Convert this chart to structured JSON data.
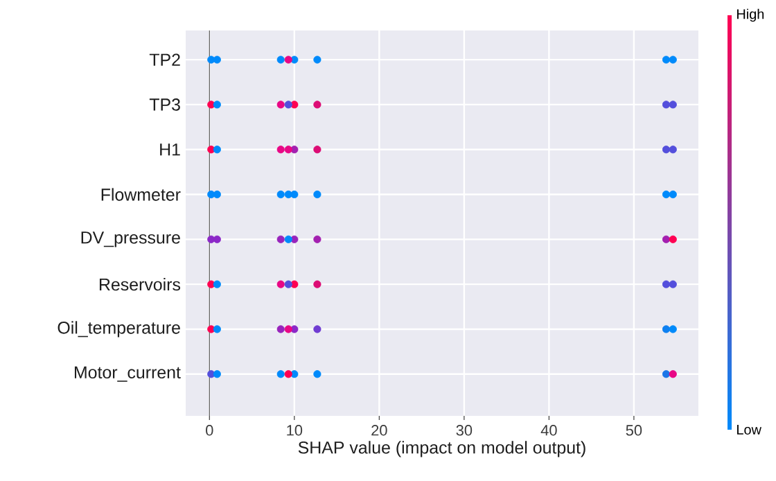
{
  "chart_data": {
    "type": "scatter",
    "orientation": "horizontal",
    "xlabel": "SHAP value (impact on model output)",
    "categories": [
      "TP2",
      "TP3",
      "H1",
      "Flowmeter",
      "DV_pressure",
      "Reservoirs",
      "Oil_temperature",
      "Motor_current"
    ],
    "xlim": [
      -2.8,
      57.6
    ],
    "xticks": [
      0,
      10,
      20,
      30,
      40,
      50
    ],
    "grid": true,
    "marker": "circle",
    "ref_lines": [
      {
        "axis": "x",
        "value": 0,
        "color": "#555555"
      }
    ],
    "annotations": [
      "Low",
      "High"
    ],
    "series": [
      {
        "values": [
          0.2,
          0.2,
          0.2,
          0.2,
          0.2,
          0.2,
          0.2,
          0.2
        ],
        "colors": [
          "#008afb",
          "#ff0052",
          "#ff0052",
          "#008afb",
          "#8c28c8",
          "#ff0052",
          "#ff0052",
          "#544fdc"
        ]
      },
      {
        "values": [
          0.9,
          0.9,
          0.9,
          0.9,
          0.9,
          0.9,
          0.9,
          0.9
        ],
        "colors": [
          "#008afb",
          "#008afb",
          "#008afb",
          "#008afb",
          "#8c28c8",
          "#008afb",
          "#008afb",
          "#008afb"
        ]
      },
      {
        "values": [
          8.4,
          8.4,
          8.4,
          8.4,
          8.4,
          8.4,
          8.4,
          8.4
        ],
        "colors": [
          "#008afb",
          "#e80886",
          "#e80886",
          "#008afb",
          "#9824bc",
          "#e80886",
          "#9824bc",
          "#008afb"
        ]
      },
      {
        "values": [
          10.0,
          10.0,
          10.0,
          10.0,
          10.0,
          10.0,
          10.0,
          10.0
        ],
        "colors": [
          "#008afb",
          "#ff0052",
          "#a320b0",
          "#008afb",
          "#9824bc",
          "#ff0052",
          "#8c28c8",
          "#008afb"
        ]
      },
      {
        "values": [
          9.3,
          9.3,
          9.3,
          9.3,
          9.3,
          9.3,
          9.3,
          9.3
        ],
        "colors": [
          "#e80886",
          "#544fdc",
          "#e80886",
          "#008afb",
          "#008afb",
          "#544fdc",
          "#e80886",
          "#ff0052"
        ]
      },
      {
        "values": [
          12.7,
          12.7,
          12.7,
          12.7,
          12.7,
          12.7,
          12.7,
          12.7
        ],
        "colors": [
          "#008afb",
          "#dc0c75",
          "#dc0c75",
          "#008afb",
          "#a320b0",
          "#dc0c75",
          "#703cd2",
          "#008afb"
        ]
      },
      {
        "values": [
          53.8,
          53.8,
          53.8,
          53.8,
          53.8,
          53.8,
          53.8,
          53.8
        ],
        "colors": [
          "#008afb",
          "#544fdc",
          "#544fdc",
          "#008afb",
          "#a320b0",
          "#544fdc",
          "#0e80f1",
          "#1c76e7"
        ]
      },
      {
        "values": [
          54.6,
          54.6,
          54.6,
          54.6,
          54.6,
          54.6,
          54.6,
          54.6
        ],
        "colors": [
          "#008afb",
          "#544fdc",
          "#544fdc",
          "#008afb",
          "#ff0052",
          "#544fdc",
          "#008afb",
          "#e80886"
        ]
      }
    ]
  }
}
